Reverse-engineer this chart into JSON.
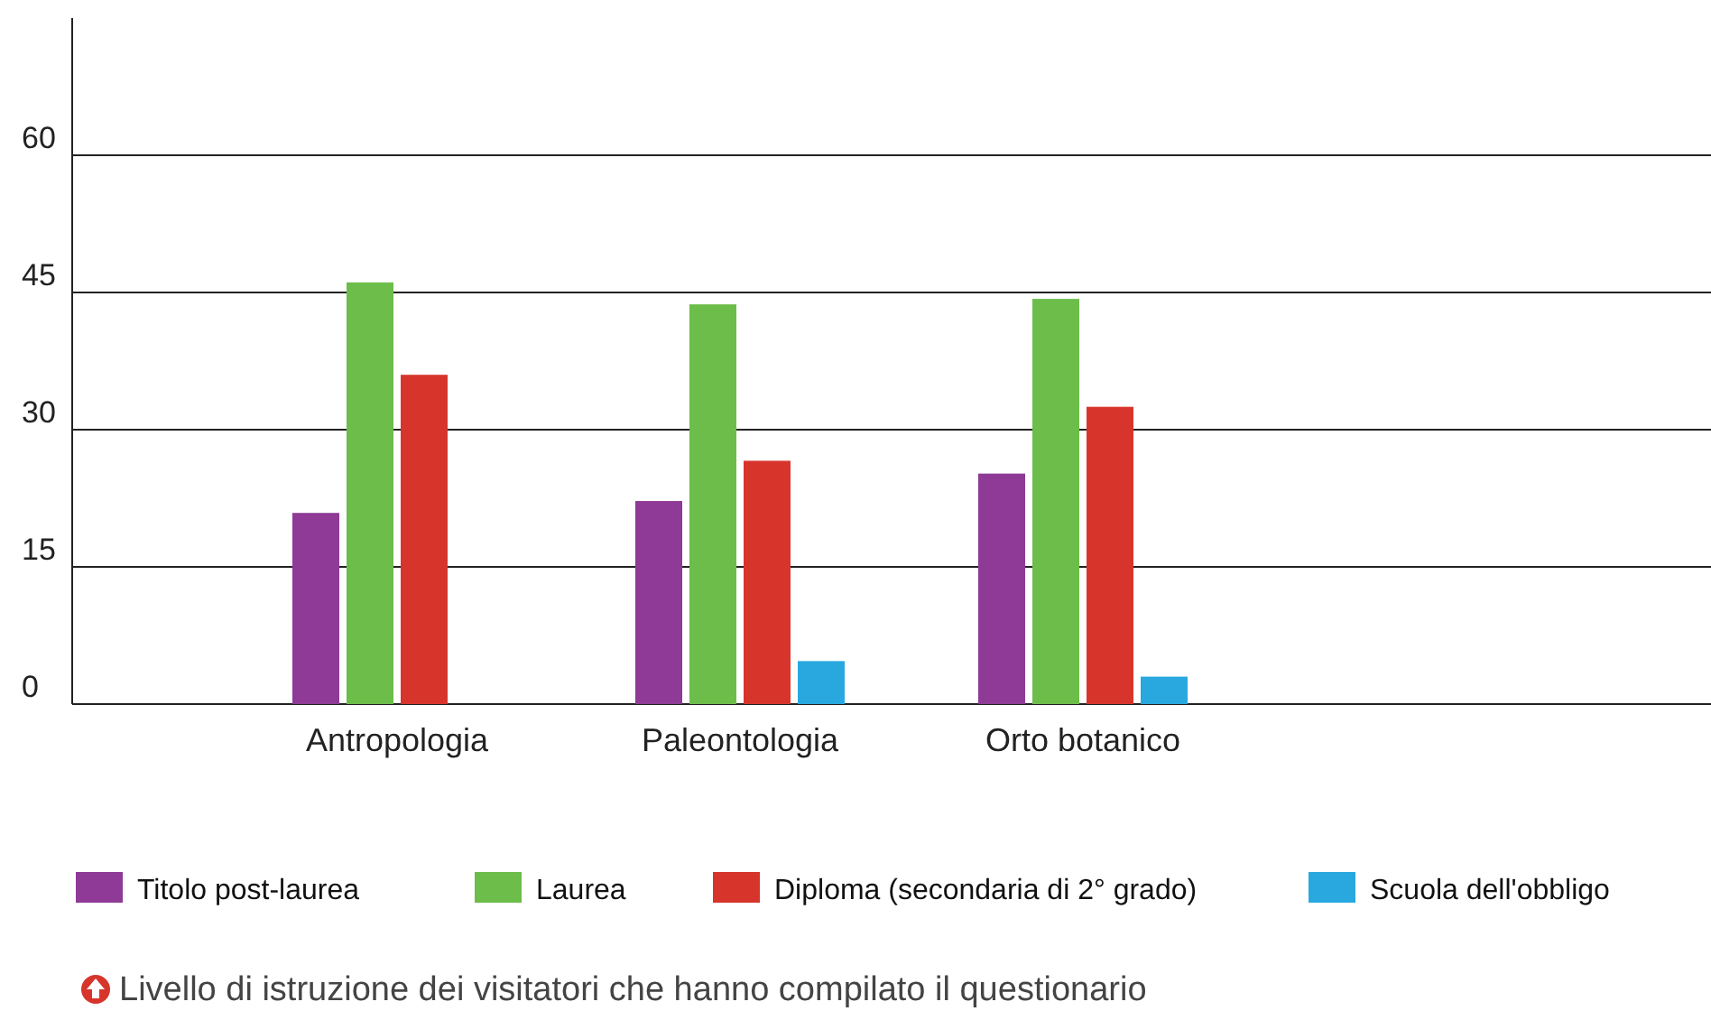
{
  "chart_data": {
    "type": "bar",
    "categories": [
      "Antropologia",
      "Paleontologia",
      "Orto botanico"
    ],
    "series": [
      {
        "name": "Titolo post-laurea",
        "color": "#8e3a96",
        "values": [
          20.9,
          22.2,
          25.2
        ]
      },
      {
        "name": "Laurea",
        "color": "#6cbd4a",
        "values": [
          46.1,
          43.7,
          44.3
        ]
      },
      {
        "name": "Diploma (secondaria di 2° grado)",
        "color": "#d7352c",
        "values": [
          36.0,
          26.6,
          32.5
        ]
      },
      {
        "name": "Scuola dell'obbligo",
        "color": "#29a8e0",
        "values": [
          null,
          4.7,
          3.0
        ]
      }
    ],
    "ylim": [
      0,
      75
    ],
    "yticks": [
      0,
      15,
      30,
      45,
      60
    ],
    "grid": "y",
    "legend": "bottom",
    "annotations": [
      "Livello di istruzione dei visitatori che hanno compilato il questionario"
    ]
  }
}
